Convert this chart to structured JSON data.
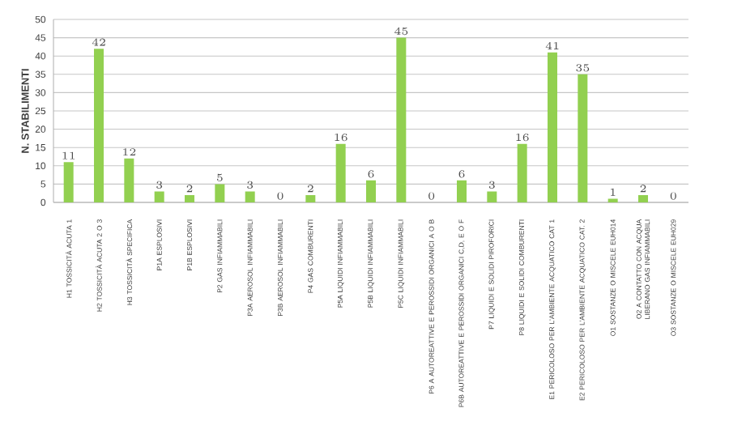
{
  "chart_data": {
    "type": "bar",
    "ylabel": "N. STABILIMENTI",
    "categories": [
      "H1 TOSSICITÀ ACUTA 1",
      "H2 TOSSICITÀ ACUTA 2 O 3",
      "H3 TOSSICITÀ SPECIFICA",
      "P1A ESPLOSIVI",
      "P1B ESPLOSIVI",
      "P2 GAS INFIAMMABILI",
      "P3A AEROSOL INFIAMMABILI",
      "P3B AEROSOL INFIAMMABILI",
      "P4 GAS COMBURENTI",
      "P5A LIQUIDI INFIAMMABILI",
      "P5B LIQUIDI INFIAMMABILI",
      "P5C LIQUIDI INFIAMMABILI",
      "P6 A AUTOREATTIVE E PEROSSIDI ORGANICI A O B",
      "P6B AUTOREATTIVE E PEROSSIDI ORGANICI C,D, E O F",
      "P7 LIQUIDI E SOLIDI PIROFORICI",
      "P8 LIQUIDI E SOLIDI COMBURENTI",
      "E1 PERICOLOSO PER L'AMBIENTE ACQUATICO CAT 1",
      "E2 PERICOLOSO PER L'AMBIENTE ACQUATICO CAT. 2",
      "O1 SOSTANZE O MISCELE EUH014",
      "O2 A CONTATTO CON ACQUA LIBERANO GAS INFIAMMABILI",
      "O3 SOSTANZE O MISCELE EUH029"
    ],
    "values": [
      11,
      42,
      12,
      3,
      2,
      5,
      3,
      0,
      2,
      16,
      6,
      45,
      0,
      6,
      3,
      16,
      41,
      35,
      1,
      2,
      0
    ],
    "color": "#92d050",
    "ylim": [
      0,
      50
    ],
    "yticks": [
      0,
      5,
      10,
      15,
      20,
      25,
      30,
      35,
      40,
      45,
      50
    ],
    "grid": "y",
    "data_labels": true
  }
}
